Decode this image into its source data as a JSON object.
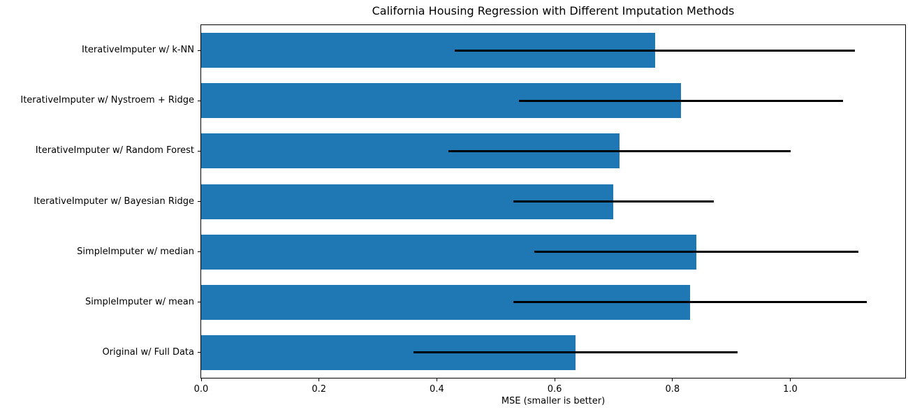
{
  "chart_data": {
    "type": "bar",
    "orientation": "horizontal",
    "title": "California Housing Regression with Different Imputation Methods",
    "xlabel": "MSE (smaller is better)",
    "ylabel": "",
    "categories_top_to_bottom": [
      "IterativeImputer w/ k-NN",
      "IterativeImputer w/ Nystroem + Ridge",
      "IterativeImputer w/ Random Forest",
      "IterativeImputer w/ Bayesian Ridge",
      "SimpleImputer w/ median",
      "SimpleImputer w/ mean",
      "Original w/ Full Data"
    ],
    "series": [
      {
        "name": "MSE",
        "values": [
          0.77,
          0.815,
          0.71,
          0.7,
          0.84,
          0.83,
          0.635
        ],
        "xerr": [
          0.34,
          0.275,
          0.29,
          0.17,
          0.275,
          0.3,
          0.275
        ]
      }
    ],
    "xlim": [
      0,
      1.195
    ],
    "xticks": [
      0.0,
      0.2,
      0.4,
      0.6,
      0.8,
      1.0
    ],
    "xtick_labels": [
      "0.0",
      "0.2",
      "0.4",
      "0.6",
      "0.8",
      "1.0"
    ],
    "grid": false,
    "legend": "none",
    "bar_color": "#1f77b4",
    "error_bar_color": "#000000",
    "background_color": "#ffffff"
  }
}
